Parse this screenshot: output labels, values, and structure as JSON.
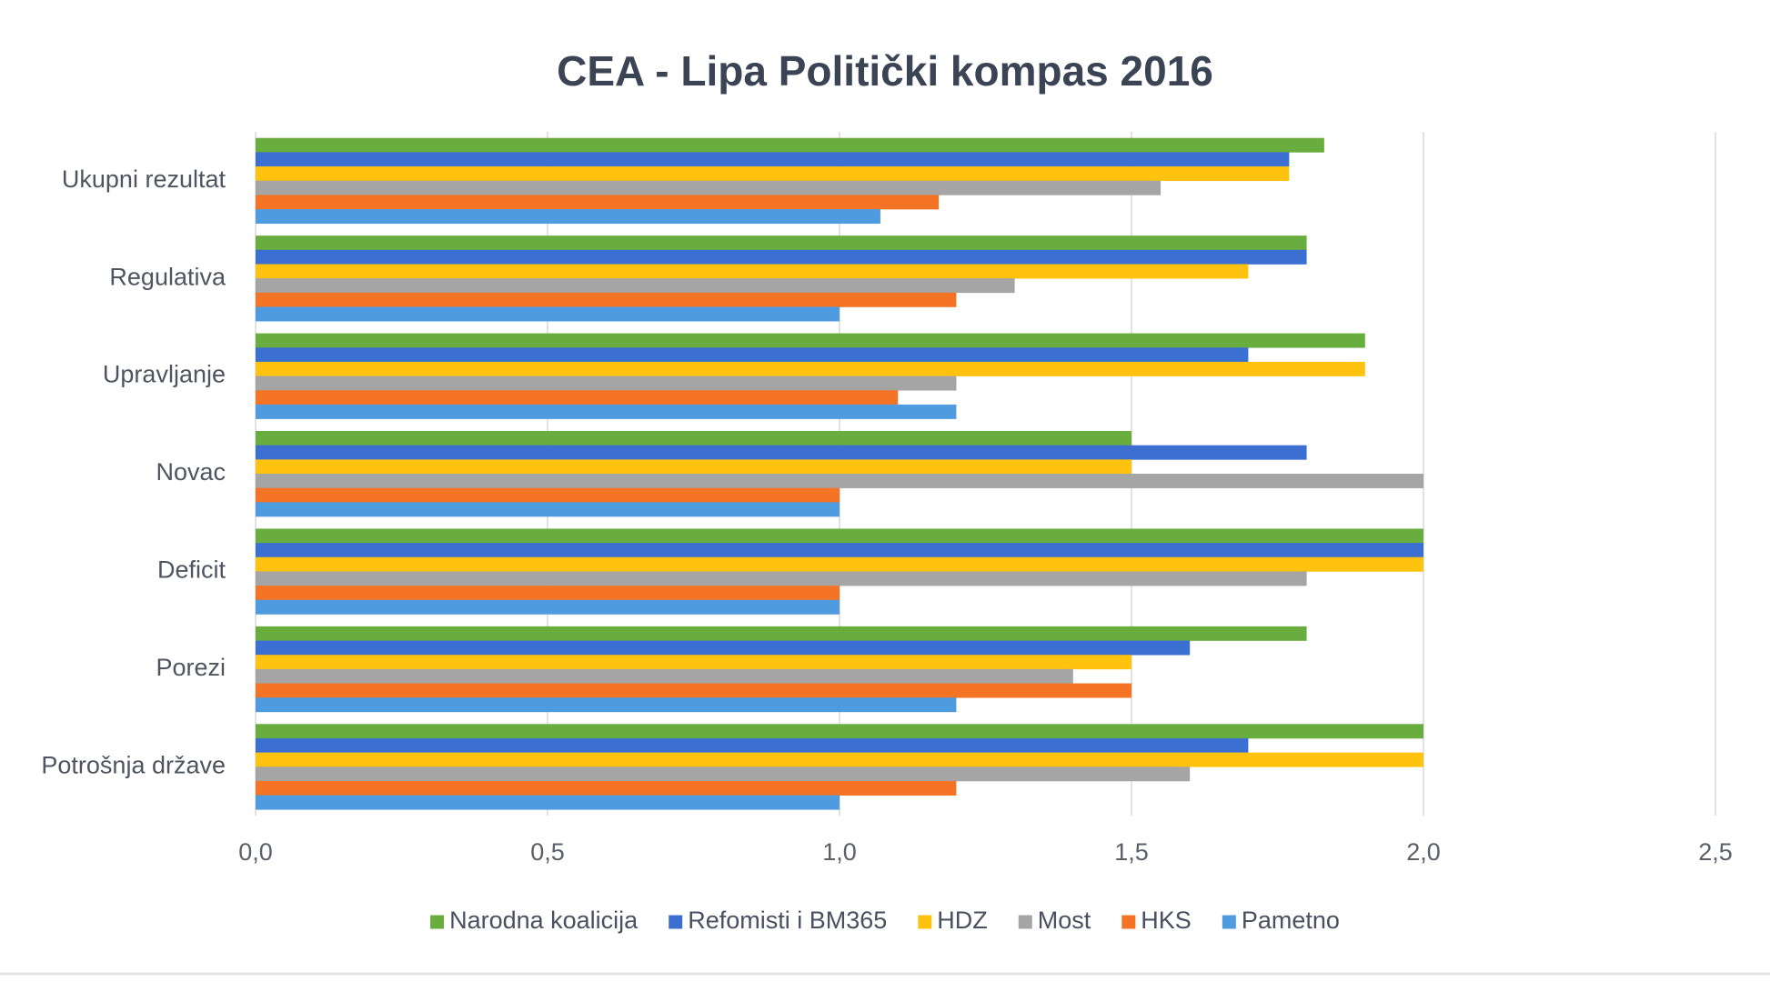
{
  "chart_data": {
    "type": "bar",
    "orientation": "horizontal",
    "title": "CEA - Lipa Politički kompas 2016",
    "xlabel": "",
    "ylabel": "",
    "xlim": [
      0,
      2.5
    ],
    "x_ticks": [
      "0,0",
      "0,5",
      "1,0",
      "1,5",
      "2,0",
      "2,5"
    ],
    "x_tick_values": [
      0,
      0.5,
      1.0,
      1.5,
      2.0,
      2.5
    ],
    "grid": true,
    "legend_position": "bottom",
    "categories": [
      "Ukupni rezultat",
      "Regulativa",
      "Upravljanje",
      "Novac",
      "Deficit",
      "Porezi",
      "Potrošnja države"
    ],
    "series": [
      {
        "name": "Narodna koalicija",
        "color": "#6aad3f",
        "values": [
          1.83,
          1.8,
          1.9,
          1.5,
          2.0,
          1.8,
          2.0
        ]
      },
      {
        "name": "Refomisti i BM365",
        "color": "#3b6fd1",
        "values": [
          1.77,
          1.8,
          1.7,
          1.8,
          2.0,
          1.6,
          1.7
        ]
      },
      {
        "name": "HDZ",
        "color": "#ffc20e",
        "values": [
          1.77,
          1.7,
          1.9,
          1.5,
          2.0,
          1.5,
          2.0
        ]
      },
      {
        "name": "Most",
        "color": "#a5a5a5",
        "values": [
          1.55,
          1.3,
          1.2,
          2.0,
          1.8,
          1.4,
          1.6
        ]
      },
      {
        "name": "HKS",
        "color": "#f47325",
        "values": [
          1.17,
          1.2,
          1.1,
          1.0,
          1.0,
          1.5,
          1.2
        ]
      },
      {
        "name": "Pametno",
        "color": "#4f9be0",
        "values": [
          1.07,
          1.0,
          1.2,
          1.0,
          1.0,
          1.2,
          1.0
        ]
      }
    ]
  }
}
